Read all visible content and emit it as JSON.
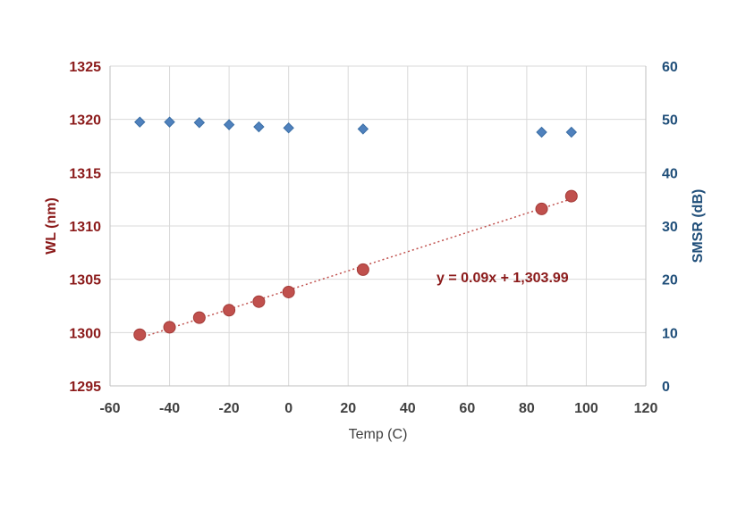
{
  "colors": {
    "wl": "#8B1A1A",
    "wl_marker": "#C0504D",
    "smsr": "#1F4E79",
    "smsr_marker": "#4F81BD",
    "grid": "#D9D9D9",
    "axis_text": "#404040"
  },
  "chart_data": {
    "type": "scatter",
    "xlabel": "Temp (C)",
    "ylabel_left": "WL (nm)",
    "ylabel_right": "SMSR (dB)",
    "xlim": [
      -60,
      120
    ],
    "ylim_left": [
      1295,
      1325
    ],
    "ylim_right": [
      0,
      60
    ],
    "x_ticks": [
      "-60",
      "-40",
      "-20",
      "0",
      "20",
      "40",
      "60",
      "80",
      "100",
      "120"
    ],
    "y_left_ticks": [
      "1295",
      "1300",
      "1305",
      "1310",
      "1315",
      "1320",
      "1325"
    ],
    "y_right_ticks": [
      "0",
      "10",
      "20",
      "30",
      "40",
      "50",
      "60"
    ],
    "grid": true,
    "series": [
      {
        "name": "WL (nm)",
        "axis": "left",
        "marker": "circle",
        "x": [
          -50,
          -40,
          -30,
          -20,
          -10,
          0,
          25,
          85,
          95
        ],
        "y": [
          1299.8,
          1300.5,
          1301.4,
          1302.1,
          1302.9,
          1303.8,
          1305.9,
          1311.6,
          1312.8
        ]
      },
      {
        "name": "SMSR (dB)",
        "axis": "right",
        "marker": "diamond",
        "x": [
          -50,
          -40,
          -30,
          -20,
          -10,
          0,
          25,
          85,
          95
        ],
        "y": [
          49.5,
          49.5,
          49.4,
          49.0,
          48.6,
          48.4,
          48.2,
          47.6,
          47.6
        ]
      }
    ],
    "trendline": {
      "series": "WL (nm)",
      "style": "dotted",
      "slope": 0.09,
      "intercept": 1303.99,
      "x_range": [
        -50,
        95
      ],
      "equation_label": "y = 0.09x + 1,303.99"
    }
  }
}
